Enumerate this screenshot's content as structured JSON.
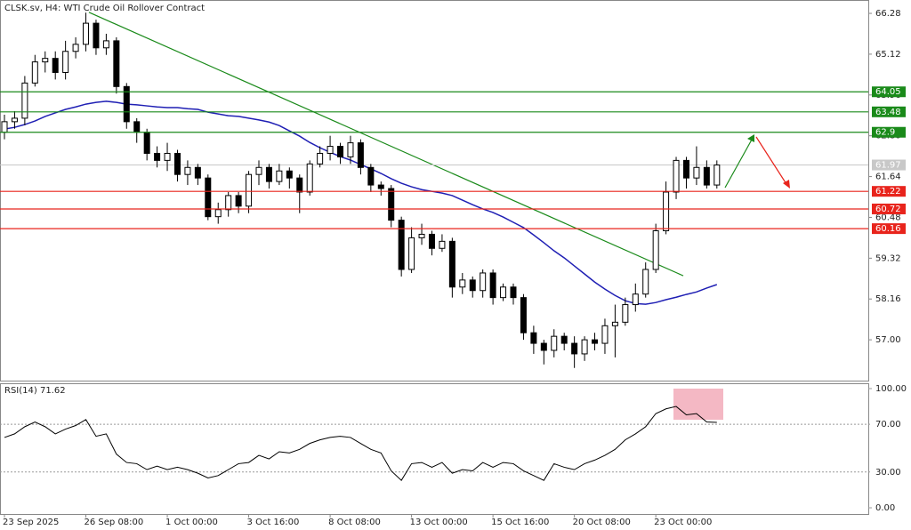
{
  "header": "CLSK.sv, H4:  WTI Crude Oil Rollover Contract",
  "chart_data": [
    {
      "type": "candlestick",
      "categories": [
        "23 Sep 2025",
        null,
        null,
        null,
        null,
        null,
        null,
        null,
        "26 Sep 08:00",
        null,
        null,
        null,
        null,
        null,
        null,
        null,
        "1 Oct 00:00",
        null,
        null,
        null,
        null,
        null,
        null,
        null,
        "3 Oct 16:00",
        null,
        null,
        null,
        null,
        null,
        null,
        null,
        "8 Oct 08:00",
        null,
        null,
        null,
        null,
        null,
        null,
        null,
        "13 Oct 00:00",
        null,
        null,
        null,
        null,
        null,
        null,
        null,
        "15 Oct 16:00",
        null,
        null,
        null,
        null,
        null,
        null,
        null,
        "20 Oct 08:00",
        null,
        null,
        null,
        null,
        null,
        null,
        null,
        "23 Oct 00:00",
        null,
        null,
        null,
        null,
        null,
        null
      ],
      "open": [
        62.9,
        63.2,
        63.3,
        64.3,
        64.9,
        65.0,
        64.6,
        65.2,
        65.4,
        66.0,
        65.3,
        65.5,
        64.2,
        63.2,
        62.9,
        62.3,
        62.1,
        62.3,
        61.7,
        61.9,
        61.6,
        60.5,
        60.7,
        61.1,
        60.8,
        61.7,
        61.9,
        61.5,
        61.8,
        61.6,
        61.2,
        62.0,
        62.3,
        62.5,
        62.2,
        62.6,
        61.9,
        61.4,
        61.3,
        60.4,
        59.0,
        59.9,
        60.0,
        59.6,
        59.8,
        58.5,
        58.7,
        58.4,
        58.9,
        58.2,
        58.5,
        58.2,
        57.2,
        56.9,
        56.7,
        57.1,
        56.9,
        56.6,
        57.0,
        56.9,
        57.4,
        57.5,
        58.0,
        58.3,
        59.0,
        60.1,
        61.2,
        62.1,
        61.6,
        61.9,
        61.4
      ],
      "high": [
        63.4,
        63.5,
        64.5,
        65.1,
        65.2,
        65.2,
        65.5,
        65.6,
        66.3,
        66.1,
        65.7,
        65.6,
        64.3,
        63.3,
        63.0,
        62.5,
        62.6,
        62.4,
        62.1,
        62.0,
        61.7,
        60.9,
        61.2,
        61.2,
        61.8,
        62.1,
        62.0,
        62.0,
        61.9,
        61.7,
        62.1,
        62.5,
        62.8,
        62.6,
        62.8,
        62.7,
        62.0,
        61.5,
        61.4,
        60.5,
        60.2,
        60.3,
        60.1,
        60.0,
        59.9,
        58.9,
        58.8,
        59.0,
        59.0,
        58.6,
        58.6,
        58.3,
        57.4,
        57.0,
        57.3,
        57.2,
        57.1,
        57.1,
        57.2,
        57.6,
        58.0,
        58.2,
        58.6,
        59.2,
        60.3,
        61.5,
        62.2,
        62.2,
        62.5,
        62.1,
        62.1
      ],
      "low": [
        62.7,
        63.0,
        63.1,
        64.2,
        64.6,
        64.4,
        64.4,
        65.0,
        65.2,
        65.1,
        65.1,
        64.0,
        63.0,
        62.6,
        62.1,
        61.9,
        61.8,
        61.5,
        61.4,
        61.4,
        60.4,
        60.3,
        60.5,
        60.6,
        60.6,
        61.4,
        61.3,
        61.4,
        61.3,
        60.6,
        61.1,
        61.9,
        62.1,
        62.0,
        62.0,
        61.7,
        61.2,
        61.1,
        60.2,
        58.8,
        58.9,
        59.7,
        59.4,
        59.5,
        58.2,
        58.3,
        58.2,
        58.2,
        58.0,
        58.1,
        58.0,
        57.0,
        56.6,
        56.3,
        56.5,
        56.7,
        56.2,
        56.4,
        56.7,
        56.6,
        56.5,
        57.4,
        57.8,
        58.2,
        58.9,
        60.0,
        61.0,
        61.3,
        61.4,
        61.3,
        61.3
      ],
      "close": [
        63.2,
        63.3,
        64.3,
        64.9,
        65.0,
        64.6,
        65.2,
        65.4,
        66.0,
        65.3,
        65.5,
        64.2,
        63.2,
        62.9,
        62.3,
        62.1,
        62.3,
        61.7,
        61.9,
        61.6,
        60.5,
        60.7,
        61.1,
        60.8,
        61.7,
        61.9,
        61.5,
        61.8,
        61.6,
        61.2,
        62.0,
        62.3,
        62.5,
        62.2,
        62.6,
        61.9,
        61.4,
        61.3,
        60.4,
        59.0,
        59.9,
        60.0,
        59.6,
        59.8,
        58.5,
        58.7,
        58.4,
        58.9,
        58.2,
        58.5,
        58.2,
        57.2,
        56.9,
        56.7,
        57.1,
        56.9,
        56.6,
        57.0,
        56.9,
        57.4,
        57.5,
        58.0,
        58.3,
        59.0,
        60.1,
        61.2,
        62.1,
        61.6,
        61.9,
        61.4,
        61.97
      ],
      "ma_values": [
        62.99,
        63.04,
        63.12,
        63.22,
        63.35,
        63.45,
        63.55,
        63.62,
        63.7,
        63.75,
        63.78,
        63.75,
        63.7,
        63.68,
        63.65,
        63.62,
        63.6,
        63.6,
        63.57,
        63.55,
        63.47,
        63.42,
        63.37,
        63.35,
        63.3,
        63.25,
        63.19,
        63.09,
        62.94,
        62.79,
        62.61,
        62.46,
        62.33,
        62.21,
        62.11,
        61.98,
        61.86,
        61.73,
        61.58,
        61.45,
        61.35,
        61.27,
        61.22,
        61.17,
        61.1,
        60.97,
        60.84,
        60.72,
        60.62,
        60.49,
        60.34,
        60.19,
        59.98,
        59.76,
        59.53,
        59.33,
        59.1,
        58.87,
        58.64,
        58.44,
        58.26,
        58.11,
        58.03,
        58.01,
        58.06,
        58.14,
        58.21,
        58.29,
        58.36,
        58.47,
        58.57
      ],
      "ma_color": "#1f1fb4",
      "trendline": {
        "start": [
          8.3,
          66.31
        ],
        "end": [
          66.7,
          58.82
        ],
        "color": "#1a8a1a"
      },
      "levels": [
        {
          "value": 64.05,
          "color": "#1a8a1a"
        },
        {
          "value": 63.48,
          "color": "#1a8a1a"
        },
        {
          "value": 62.9,
          "color": "#1a8a1a"
        },
        {
          "value": 61.22,
          "color": "#e8241c"
        },
        {
          "value": 60.72,
          "color": "#e8241c"
        },
        {
          "value": 60.16,
          "color": "#e8241c"
        }
      ],
      "last_price": 61.97,
      "ylim": [
        55.84,
        66.66
      ],
      "yticks": [
        {
          "value": 57,
          "label": "57.00"
        },
        58.16,
        59.32,
        60.48,
        61.64,
        {
          "value": 62.8,
          "label": "62.80"
        },
        63.96,
        65.12,
        66.28
      ]
    },
    {
      "type": "line",
      "title": "RSI(14) 71.62",
      "values": [
        59,
        62,
        68,
        72,
        68,
        62,
        66,
        69,
        74,
        60,
        62,
        45,
        38,
        37,
        32,
        35,
        32,
        34,
        32,
        29,
        25,
        27,
        32,
        37,
        38,
        44,
        41,
        47,
        46,
        49,
        54,
        57,
        59,
        60,
        59,
        54,
        49,
        46,
        31,
        23,
        37,
        38,
        34,
        38,
        29,
        32,
        31,
        38,
        34,
        38,
        37,
        31,
        27,
        23,
        37,
        34,
        32,
        37,
        40,
        44,
        49,
        57,
        62,
        68,
        79,
        83,
        85,
        78,
        79,
        72,
        71.62
      ],
      "color": "#000000",
      "ylim": [
        -5.2,
        103.7
      ],
      "yticks": [
        {
          "value": 0,
          "label": "0.00"
        },
        {
          "value": 30,
          "label": "30.00"
        },
        {
          "value": 70,
          "label": "70.00"
        },
        {
          "value": 100,
          "label": "100.00"
        }
      ]
    }
  ]
}
